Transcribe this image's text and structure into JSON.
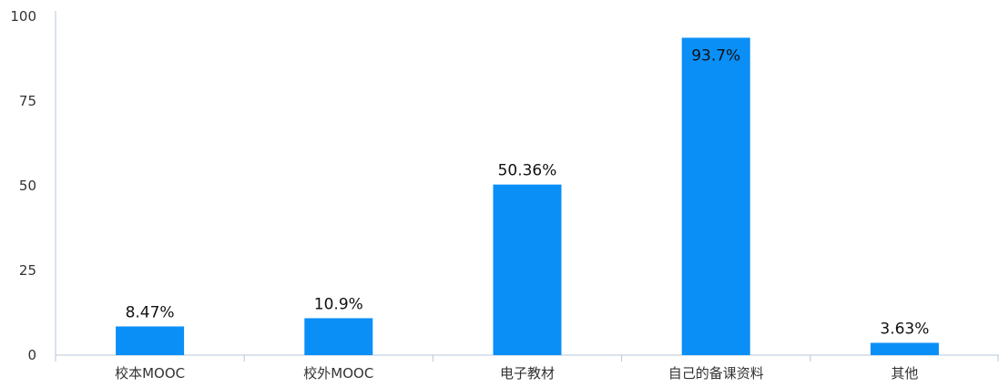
{
  "chart_data": {
    "type": "bar",
    "title": "",
    "xlabel": "",
    "ylabel": "",
    "ylim": [
      0,
      100
    ],
    "yticks": [
      0,
      25,
      50,
      75,
      100
    ],
    "categories": [
      "校本MOOC",
      "校外MOOC",
      "电子教材",
      "自己的备课资料",
      "其他"
    ],
    "values": [
      8.47,
      10.9,
      50.36,
      93.7,
      3.63
    ],
    "data_labels": [
      "8.47%",
      "10.9%",
      "50.36%",
      "93.7%",
      "3.63%"
    ],
    "grid": false,
    "legend": "none"
  },
  "colors": {
    "bar": "#0a8ff7",
    "axis": "#b7c7d9",
    "text": "#333333"
  }
}
